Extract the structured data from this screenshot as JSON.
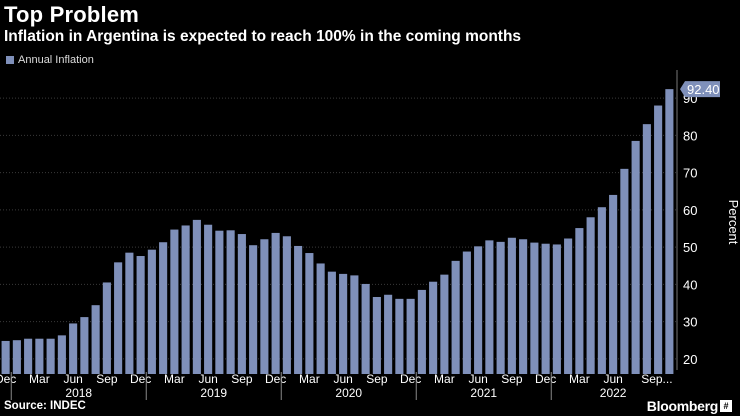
{
  "header": {
    "title": "Top Problem",
    "subtitle": "Inflation in Argentina is expected to reach 100% in the coming months"
  },
  "footer": {
    "source": "Source: INDEC",
    "brand": "Bloomberg"
  },
  "colors": {
    "bar": "#7f90ba",
    "background": "#000000",
    "grid": "#3a3a3a",
    "label_bg": "#7f90ba"
  },
  "chart_data": {
    "type": "bar",
    "title": "Top Problem",
    "subtitle": "Inflation in Argentina is expected to reach 100% in the coming months",
    "legend": [
      "Annual Inflation"
    ],
    "legend_position": "top-left",
    "ylabel": "Percent",
    "y_axis_side": "right",
    "ylim": [
      17,
      97
    ],
    "yticks": [
      20,
      30,
      40,
      50,
      60,
      70,
      80,
      90
    ],
    "grid": true,
    "last_value_label": "92.40",
    "month_tick_labels": [
      "Dec",
      "Mar",
      "Jun",
      "Sep",
      "Dec",
      "Mar",
      "Jun",
      "Sep",
      "Dec",
      "Mar",
      "Jun",
      "Sep",
      "Dec",
      "Mar",
      "Jun",
      "Sep",
      "Dec",
      "Mar",
      "Jun",
      "Sep..."
    ],
    "year_labels": [
      "2018",
      "2019",
      "2020",
      "2021",
      "2022"
    ],
    "series": [
      {
        "name": "Annual Inflation",
        "values": [
          24.8,
          25.0,
          25.4,
          25.4,
          25.4,
          26.3,
          29.5,
          31.2,
          34.4,
          40.5,
          45.9,
          48.5,
          47.6,
          49.3,
          51.3,
          54.7,
          55.8,
          57.3,
          56.0,
          54.4,
          54.5,
          53.5,
          50.5,
          52.1,
          53.8,
          52.9,
          50.3,
          48.4,
          45.6,
          43.4,
          42.8,
          42.4,
          40.1,
          36.6,
          37.2,
          36.1,
          36.1,
          38.5,
          40.7,
          42.6,
          46.3,
          48.8,
          50.2,
          51.8,
          51.4,
          52.5,
          52.1,
          51.2,
          50.9,
          50.7,
          52.3,
          55.1,
          58.0,
          60.7,
          64.0,
          71.0,
          78.5,
          83.0,
          88.0,
          92.4
        ]
      }
    ]
  }
}
